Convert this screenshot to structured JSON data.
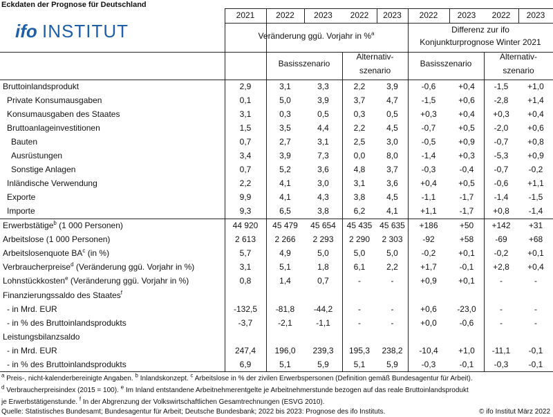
{
  "title": "Eckdaten der Prognose für Deutschland",
  "logo": {
    "brand": "ifo",
    "name": "INSTITUT"
  },
  "header": {
    "years": [
      "2021",
      "2022",
      "2023",
      "2022",
      "2023",
      "2022",
      "2023",
      "2022",
      "2023"
    ],
    "groups": [
      {
        "lines": [
          "Veränderung ggü. Vorjahr in %"
        ],
        "sup": "a"
      },
      {
        "lines": [
          "Differenz zur ifo",
          "Konjunkturprognose Winter 2021"
        ]
      }
    ],
    "scenarios": [
      {
        "lines": [
          "Basisszenario"
        ]
      },
      {
        "lines": [
          "Alternativ-",
          "szenario"
        ]
      },
      {
        "lines": [
          "Basisszenario"
        ]
      },
      {
        "lines": [
          "Alternativ-",
          "szenario"
        ]
      }
    ]
  },
  "rows": [
    {
      "label": "Bruttoinlandsprodukt",
      "level": 0,
      "values": [
        "2,9",
        "3,1",
        "3,3",
        "2,2",
        "3,9",
        "-0,6",
        "+0,4",
        "-1,5",
        "+1,0"
      ]
    },
    {
      "label": "Private Konsumausgaben",
      "level": 1,
      "values": [
        "0,1",
        "5,0",
        "3,9",
        "3,7",
        "4,7",
        "-1,5",
        "+0,6",
        "-2,8",
        "+1,4"
      ]
    },
    {
      "label": "Konsumausgaben des Staates",
      "level": 1,
      "values": [
        "3,1",
        "0,3",
        "0,5",
        "0,3",
        "0,5",
        "+0,3",
        "+0,4",
        "+0,3",
        "+0,4"
      ]
    },
    {
      "label": "Bruttoanlageinvestitionen",
      "level": 1,
      "values": [
        "1,5",
        "3,5",
        "4,4",
        "2,2",
        "4,5",
        "-0,7",
        "+0,5",
        "-2,0",
        "+0,6"
      ]
    },
    {
      "label": "Bauten",
      "level": 2,
      "values": [
        "0,7",
        "2,7",
        "3,1",
        "2,5",
        "3,0",
        "-0,5",
        "+0,9",
        "-0,7",
        "+0,8"
      ]
    },
    {
      "label": "Ausrüstungen",
      "level": 2,
      "values": [
        "3,4",
        "3,9",
        "7,3",
        "0,0",
        "8,0",
        "-1,4",
        "+0,3",
        "-5,3",
        "+0,9"
      ]
    },
    {
      "label": "Sonstige Anlagen",
      "level": 2,
      "values": [
        "0,7",
        "5,2",
        "3,6",
        "4,8",
        "3,7",
        "-0,3",
        "-0,4",
        "-0,7",
        "-0,2"
      ]
    },
    {
      "label": "Inländische Verwendung",
      "level": 1,
      "values": [
        "2,2",
        "4,1",
        "3,0",
        "3,1",
        "3,6",
        "+0,4",
        "+0,5",
        "-0,6",
        "+1,1"
      ]
    },
    {
      "label": "Exporte",
      "level": 1,
      "values": [
        "9,9",
        "4,1",
        "4,3",
        "3,8",
        "4,5",
        "-1,1",
        "-1,7",
        "-1,4",
        "-1,5"
      ]
    },
    {
      "label": "Importe",
      "level": 1,
      "values": [
        "9,3",
        "6,5",
        "3,8",
        "6,2",
        "4,1",
        "+1,1",
        "-1,7",
        "+0,8",
        "-1,4"
      ]
    },
    {
      "label": "Erwerbstätige",
      "sup": "b",
      "rest": " (1 000 Personen)",
      "level": 0,
      "values": [
        "44 920",
        "45 479",
        "45 654",
        "45 435",
        "45 635",
        "+186",
        "+50",
        "+142",
        "+31"
      ]
    },
    {
      "label": "Arbeitslose (1 000 Personen)",
      "level": 0,
      "values": [
        "2 613",
        "2 266",
        "2 293",
        "2 290",
        "2 303",
        "-92",
        "+58",
        "-69",
        "+68"
      ]
    },
    {
      "label": "Arbeitslosenquote BA",
      "sup": "c",
      "rest": " (in %)",
      "level": 0,
      "values": [
        "5,7",
        "4,9",
        "5,0",
        "5,0",
        "5,0",
        "-0,2",
        "+0,1",
        "-0,2",
        "+0,1"
      ]
    },
    {
      "label": "Verbraucherpreise",
      "sup": "d",
      "rest": " (Veränderung ggü. Vorjahr in %)",
      "level": 0,
      "values": [
        "3,1",
        "5,1",
        "1,8",
        "6,1",
        "2,2",
        "+1,7",
        "-0,1",
        "+2,8",
        "+0,4"
      ]
    },
    {
      "label": "Lohnstückkosten",
      "sup": "e",
      "rest": " (Veränderung ggü. Vorjahr in %)",
      "level": 0,
      "values": [
        "0,8",
        "1,4",
        "0,7",
        "-",
        "-",
        "+0,9",
        "+0,1",
        "-",
        "-"
      ]
    },
    {
      "label": "Finanzierungssaldo des Staates",
      "sup": "f",
      "level": 0
    },
    {
      "label": "- in Mrd. EUR",
      "level": 1,
      "values": [
        "-132,5",
        "-81,8",
        "-44,2",
        "-",
        "-",
        "+0,6",
        "-23,0",
        "-",
        "-"
      ]
    },
    {
      "label": "- in % des Bruttoinlandsprodukts",
      "level": 1,
      "values": [
        "-3,7",
        "-2,1",
        "-1,1",
        "-",
        "-",
        "+0,0",
        "-0,6",
        "-",
        "-"
      ]
    },
    {
      "label": "Leistungsbilanzsaldo",
      "level": 0
    },
    {
      "label": "- in Mrd. EUR",
      "level": 1,
      "values": [
        "247,4",
        "196,0",
        "239,3",
        "195,3",
        "238,2",
        "-10,4",
        "+1,0",
        "-11,1",
        "-0,1"
      ]
    },
    {
      "label": "- in % des Bruttoinlandsprodukts",
      "level": 1,
      "values": [
        "6,9",
        "5,1",
        "5,9",
        "5,1",
        "5,9",
        "-0,3",
        "-0,1",
        "-0,3",
        "-0,1"
      ]
    }
  ],
  "footnotes": [
    [
      {
        "mark": "a",
        "text": " Preis-, nicht-kalenderbereinigte Angaben. "
      },
      {
        "mark": "b",
        "text": " Inlandskonzept. "
      },
      {
        "mark": "c",
        "text": " Arbeitslose in % der zivilen Erwerbspersonen (Definition gemäß Bundesagentur für Arbeit)."
      }
    ],
    [
      {
        "mark": "d",
        "text": " Verbraucherpreisindex (2015 = 100). "
      },
      {
        "mark": "e",
        "text": " Im Inland entstandene Arbeitnehmerentgelte je Arbeitnehmerstunde bezogen auf das reale Bruttoinlandsprodukt"
      }
    ],
    [
      {
        "text": "je Erwerbstätigenstunde. "
      },
      {
        "mark": "f",
        "text": " In der Abgrenzung der Volkswirtschaftlichen Gesamtrechnungen (ESVG 2010)."
      }
    ]
  ],
  "source": "Quelle: Statistisches Bundesamt; Bundesagentur für Arbeit; Deutsche Bundesbank; 2022 bis 2023: Prognose des ifo Instituts.",
  "copyright": "© ifo Institut März 2022"
}
